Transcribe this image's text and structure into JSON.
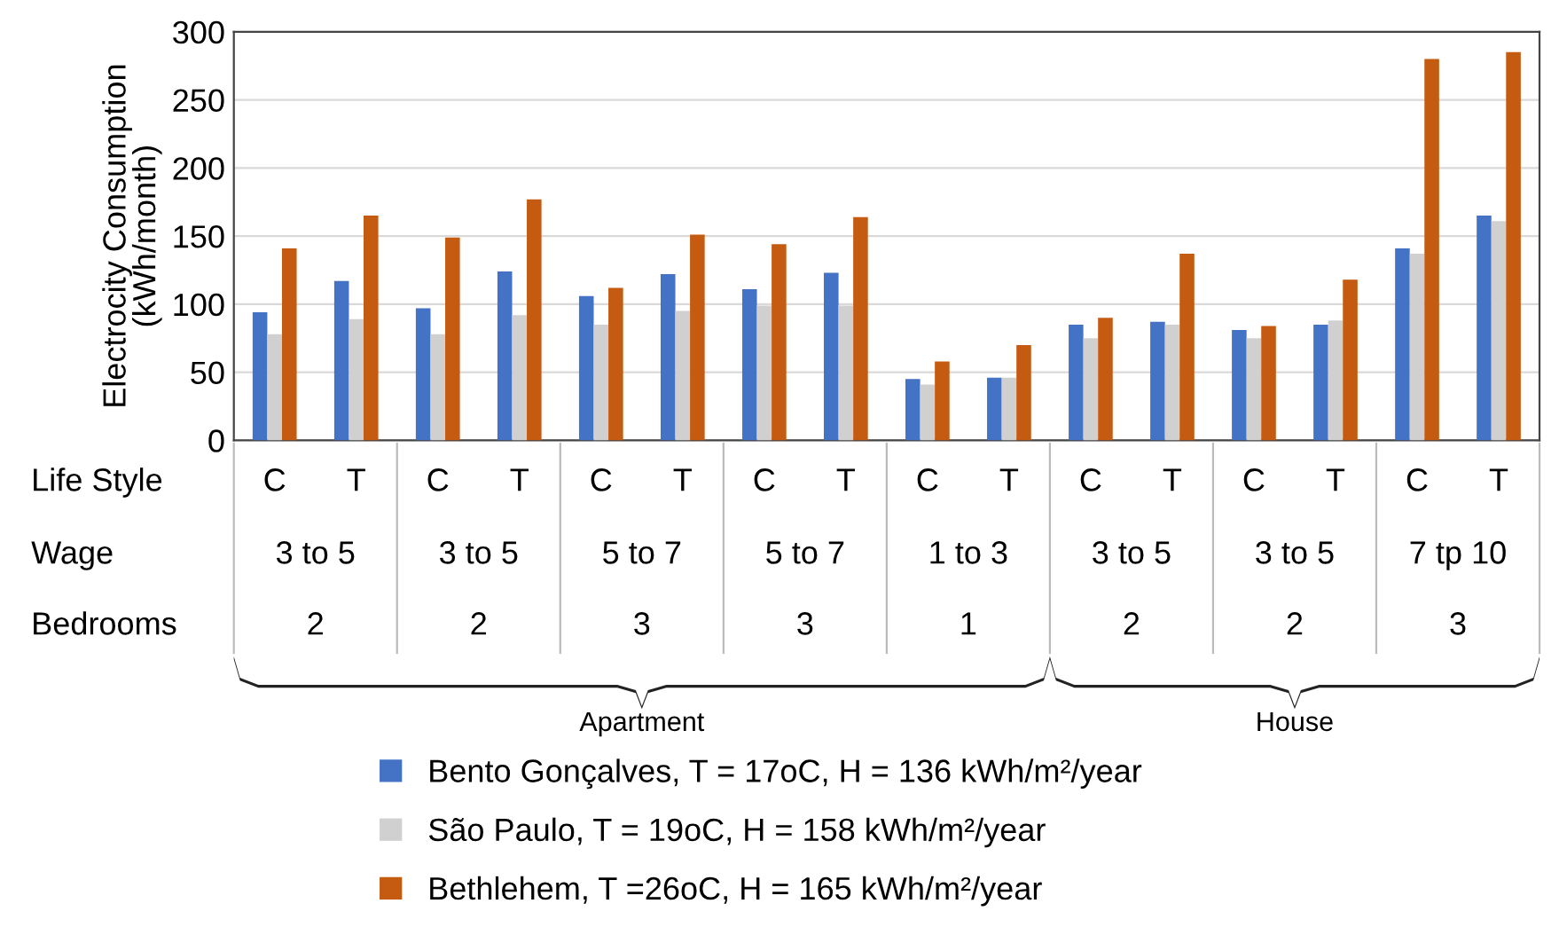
{
  "chart_data": {
    "type": "bar",
    "ylabel": "Electrocity Consumption\n(kWh/month)",
    "categories": [
      "C",
      "T",
      "C",
      "T",
      "C",
      "T",
      "C",
      "T",
      "C",
      "T",
      "C",
      "T",
      "C",
      "T",
      "C",
      "T"
    ],
    "series": [
      {
        "name": "Bento Gonçalves, T = 17oC, H = 136 kWh/m²/year",
        "color": "#4472c4",
        "values": [
          94,
          117,
          97,
          124,
          106,
          122,
          111,
          123,
          45,
          46,
          85,
          87,
          81,
          85,
          141,
          165
        ]
      },
      {
        "name": "São Paulo, T = 19oC, H = 158 kWh/m²/year",
        "color": "#d0d0d0",
        "values": [
          78,
          89,
          78,
          92,
          85,
          95,
          99,
          99,
          41,
          46,
          75,
          85,
          75,
          88,
          137,
          161
        ]
      },
      {
        "name": "Bethlehem, T =26oC, H = 165 kWh/m²/year",
        "color": "#c55a11",
        "values": [
          141,
          165,
          149,
          177,
          112,
          151,
          144,
          164,
          58,
          70,
          90,
          137,
          84,
          118,
          280,
          285
        ]
      }
    ],
    "ylim": [
      0,
      300
    ],
    "yticks": [
      0,
      50,
      100,
      150,
      200,
      250,
      300
    ],
    "grid": "y",
    "legend": "bottom",
    "annotations": [
      "Life Style",
      "Wage",
      "Bedrooms",
      "3 to 5",
      "3 to 5",
      "5 to 7",
      "5 to 7",
      "1 to 3",
      "3 to 5",
      "3 to 5",
      "7 tp 10",
      "2",
      "2",
      "3",
      "3",
      "1",
      "2",
      "2",
      "3",
      "Apartment",
      "House"
    ]
  }
}
